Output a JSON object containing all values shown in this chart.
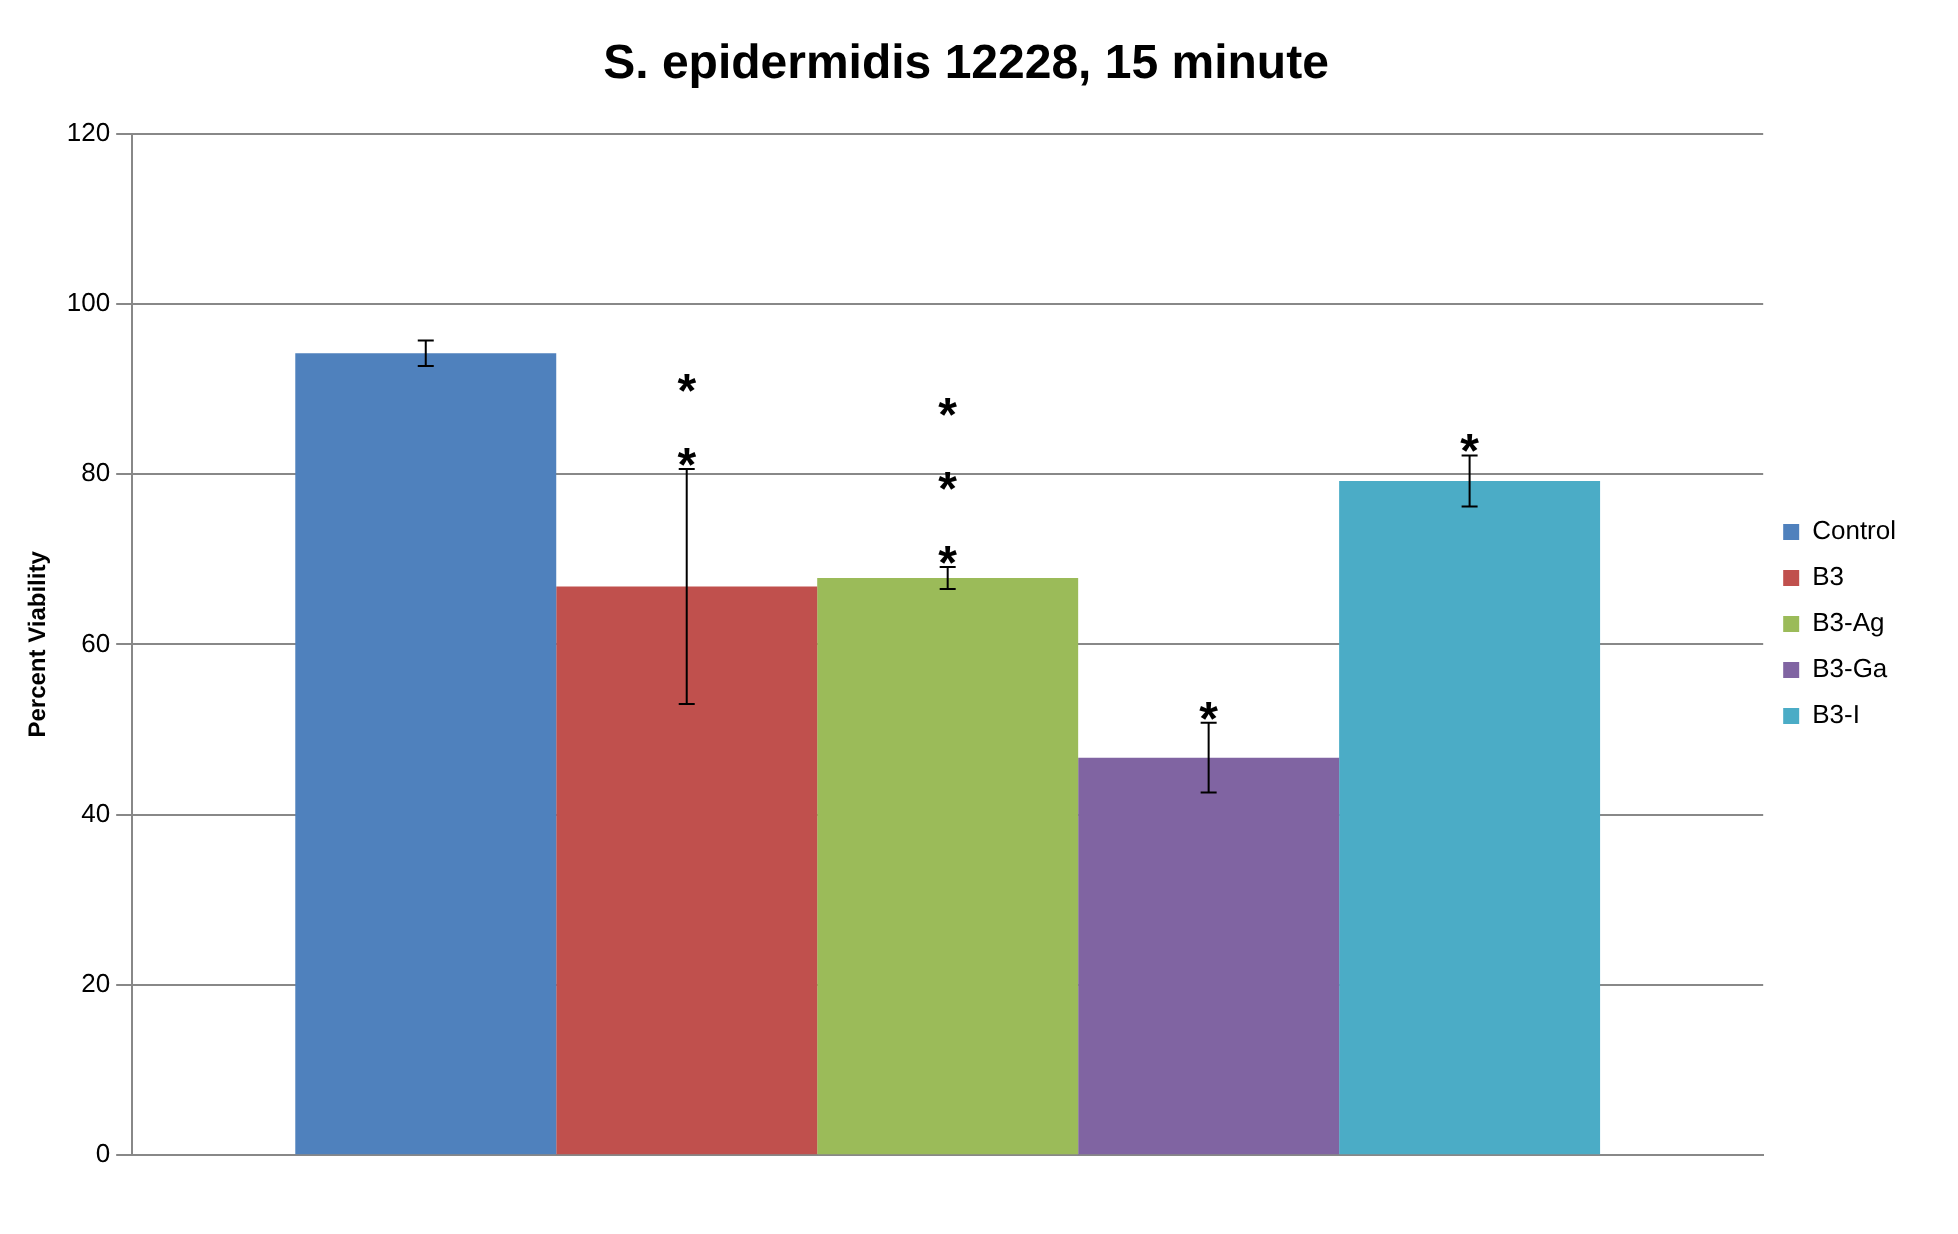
{
  "chart_data": {
    "type": "bar",
    "title": "S. epidermidis 12228, 15 minute",
    "ylabel": "Percent Viability",
    "categories": [
      null
    ],
    "series": [
      {
        "name": "Control",
        "color": "#4f81bd",
        "values": [
          94.2
        ],
        "errors": [
          1.5
        ]
      },
      {
        "name": "B3",
        "color": "#c0504d",
        "values": [
          66.8
        ],
        "errors": [
          13.8
        ]
      },
      {
        "name": "B3-Ag",
        "color": "#9bbb59",
        "values": [
          67.8
        ],
        "errors": [
          1.3
        ]
      },
      {
        "name": "B3-Ga",
        "color": "#8064a2",
        "values": [
          46.7
        ],
        "errors": [
          4.1
        ]
      },
      {
        "name": "B3-I",
        "color": "#4bacc6",
        "values": [
          79.2
        ],
        "errors": [
          3
        ]
      }
    ],
    "annotations": [
      "**",
      "***",
      "*",
      "*"
    ],
    "ylim": [
      0,
      120
    ],
    "yticks": [
      0,
      20,
      40,
      60,
      80,
      100,
      120
    ],
    "grid": "y",
    "legend": "right"
  }
}
